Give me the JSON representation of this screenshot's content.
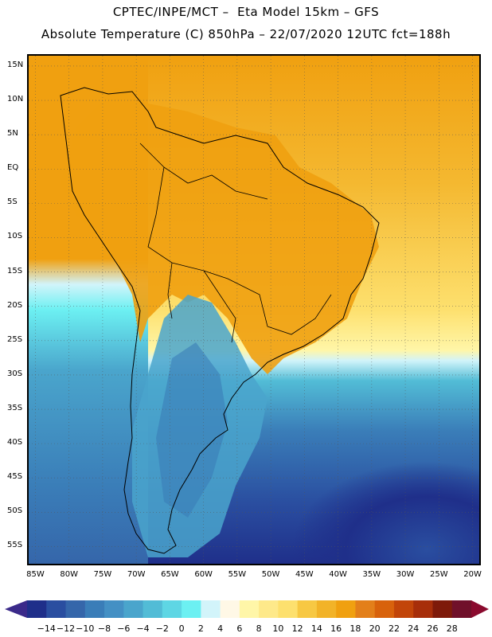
{
  "header": {
    "line1": "CPTEC/INPE/MCT –  Eta Model 15km – GFS",
    "line2": "Absolute Temperature (C) 850hPa – 22/07/2020 12UTC fct=188h"
  },
  "map": {
    "lat_labels": [
      "15N",
      "10N",
      "5N",
      "EQ",
      "5S",
      "10S",
      "15S",
      "20S",
      "25S",
      "30S",
      "35S",
      "40S",
      "45S",
      "50S",
      "55S"
    ],
    "lon_labels": [
      "85W",
      "80W",
      "75W",
      "70W",
      "65W",
      "60W",
      "55W",
      "50W",
      "45W",
      "40W",
      "35W",
      "30W",
      "25W",
      "20W"
    ],
    "lat_range": [
      16.5,
      -57.5
    ],
    "lon_range": [
      -86,
      -19
    ],
    "gridlines": "dotted"
  },
  "colorbar": {
    "labels": [
      "-14",
      "-12",
      "-10",
      "-8",
      "-6",
      "-4",
      "-2",
      "0",
      "2",
      "4",
      "6",
      "8",
      "10",
      "12",
      "14",
      "16",
      "18",
      "20",
      "22",
      "24",
      "26",
      "28"
    ],
    "colors": [
      "#1f2f8a",
      "#2a4ea0",
      "#3566aa",
      "#3a7db8",
      "#4490c4",
      "#4aa5cc",
      "#52bcd6",
      "#5ed6e4",
      "#6cf0f2",
      "#d2f4fa",
      "#fff8e6",
      "#fff6a8",
      "#fee98a",
      "#fde06e",
      "#f7c843",
      "#f2b328",
      "#f0a010",
      "#e37f1a",
      "#d8620c",
      "#c24509",
      "#a72e0a",
      "#7e1a0a",
      "#70102a"
    ],
    "left_arrow_color": "#3b2a8a",
    "right_arrow_color": "#8a0a2e",
    "unit": "C"
  },
  "colors": {
    "ocean_warm": "#f4c53a",
    "land_warm": "#f0a010",
    "cold_mid": "#4aa5cc",
    "cold_deep": "#1f2f8a",
    "coast": "#000000"
  }
}
